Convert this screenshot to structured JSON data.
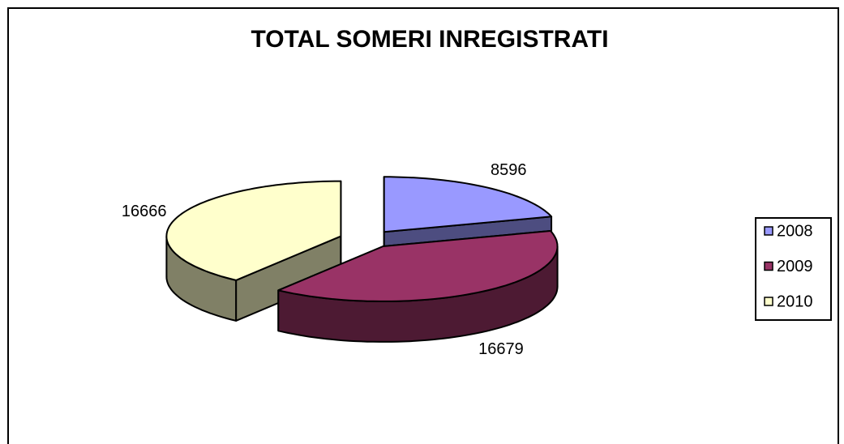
{
  "chart_data": {
    "type": "pie",
    "title": "TOTAL SOMERI INREGISTRATI",
    "categories": [
      "2008",
      "2009",
      "2010"
    ],
    "values": [
      8596,
      16679,
      16666
    ],
    "colors": [
      "#9999ff",
      "#993366",
      "#ffffcc"
    ],
    "legend": "right"
  }
}
